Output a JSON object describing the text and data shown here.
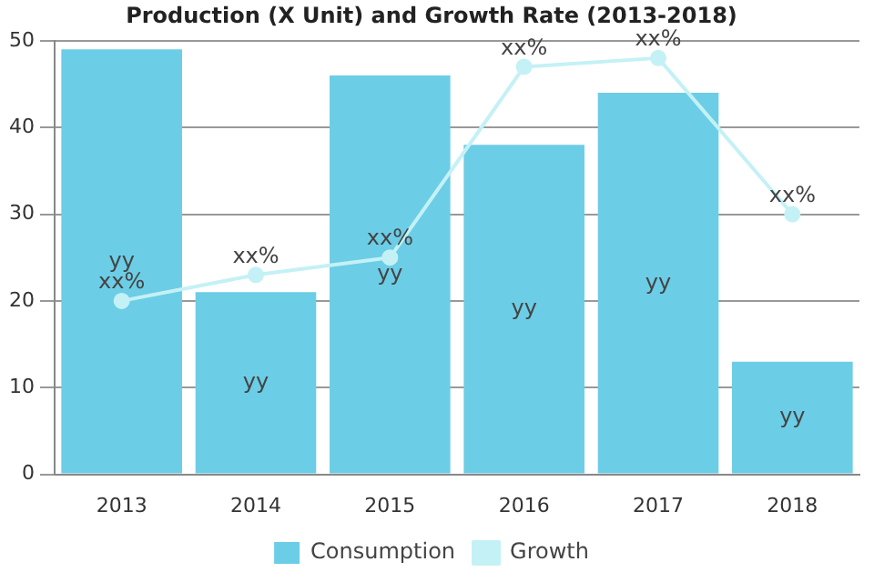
{
  "chart_data": {
    "type": "bar",
    "title": "Production (X Unit) and Growth Rate (2013-2018)",
    "categories": [
      "2013",
      "2014",
      "2015",
      "2016",
      "2017",
      "2018"
    ],
    "series": [
      {
        "name": "Consumption",
        "color": "#6ccde6",
        "values": [
          49,
          21,
          46,
          38,
          44,
          13
        ],
        "value_labels": [
          "yy",
          "yy",
          "yy",
          "yy",
          "yy",
          "yy"
        ]
      },
      {
        "name": "Growth",
        "type": "line",
        "color": "#c4f1f5",
        "values": [
          20,
          23,
          25,
          47,
          48,
          30
        ],
        "value_labels": [
          "xx%",
          "xx%",
          "xx%",
          "xx%",
          "xx%",
          "xx%"
        ]
      }
    ],
    "ylim": [
      0,
      50
    ],
    "yticks": [
      0,
      10,
      20,
      30,
      40,
      50
    ],
    "grid": "y",
    "legend": "bottom",
    "marker": "circle"
  }
}
